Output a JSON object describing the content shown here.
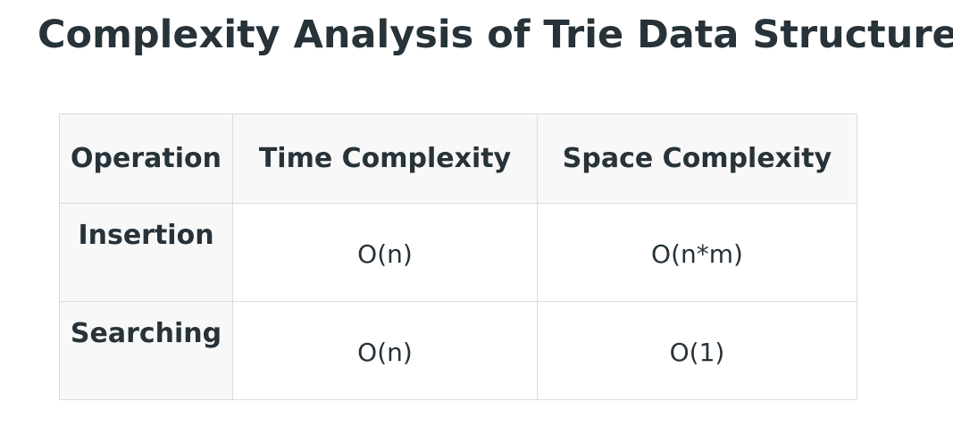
{
  "heading": "Complexity Analysis of Trie Data Structure:",
  "table": {
    "headers": [
      "Operation",
      "Time Complexity",
      "Space Complexity"
    ],
    "rows": [
      {
        "operation": "Insertion",
        "time": "O(n)",
        "space": "O(n*m)"
      },
      {
        "operation": "Searching",
        "time": "O(n)",
        "space": "O(1)"
      }
    ]
  },
  "colors": {
    "text": "#273239",
    "header_bg": "#f8f8f8",
    "border": "#dcdcdc"
  }
}
